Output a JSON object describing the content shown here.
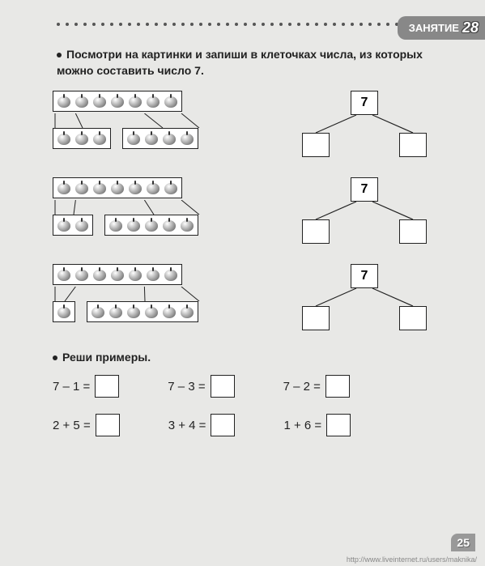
{
  "lesson": {
    "label": "ЗАНЯТИЕ",
    "number": "28"
  },
  "instruction1": "Посмотри на картинки и запиши в клеточках числа, из которых можно составить число 7.",
  "instruction2": "Реши примеры.",
  "rows": [
    {
      "top_apples": 7,
      "left_apples": 3,
      "right_apples": 4,
      "tree_top": "7"
    },
    {
      "top_apples": 7,
      "left_apples": 2,
      "right_apples": 5,
      "tree_top": "7"
    },
    {
      "top_apples": 7,
      "left_apples": 1,
      "right_apples": 6,
      "tree_top": "7"
    }
  ],
  "equations": [
    [
      "7 – 1 =",
      "7 – 3 =",
      "7 – 2 ="
    ],
    [
      "2 + 5 =",
      "3 + 4 =",
      "1 + 6 ="
    ]
  ],
  "page_number": "25",
  "watermark": "http://www.liveinternet.ru/users/maknika/",
  "colors": {
    "page_bg": "#e8e8e6",
    "text": "#222222",
    "tab_bg": "#888888",
    "box_border": "#222222"
  }
}
